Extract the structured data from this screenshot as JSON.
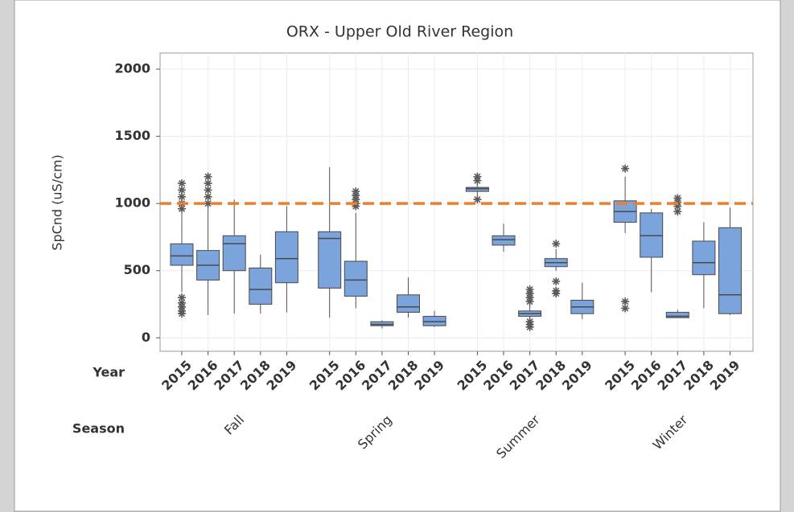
{
  "chart_data": {
    "type": "boxplot",
    "title": "ORX - Upper Old River Region",
    "ylabel": "SpCnd (uS/cm)",
    "row_labels": [
      "Year",
      "Season"
    ],
    "groups": [
      "Fall",
      "Spring",
      "Summer",
      "Winter"
    ],
    "categories": [
      "2015",
      "2016",
      "2017",
      "2018",
      "2019",
      "2015",
      "2016",
      "2017",
      "2018",
      "2019",
      "2015",
      "2016",
      "2017",
      "2018",
      "2019",
      "2015",
      "2016",
      "2017",
      "2018",
      "2019"
    ],
    "boxes": [
      {
        "min": 340,
        "q1": 540,
        "median": 610,
        "q3": 700,
        "max": 940,
        "outliers": [
          960,
          1000,
          1050,
          1100,
          1150,
          180,
          200,
          230,
          260,
          300
        ]
      },
      {
        "min": 170,
        "q1": 430,
        "median": 540,
        "q3": 650,
        "max": 980,
        "outliers": [
          1000,
          1050,
          1100,
          1150,
          1200
        ]
      },
      {
        "min": 180,
        "q1": 500,
        "median": 700,
        "q3": 760,
        "max": 1030,
        "outliers": []
      },
      {
        "min": 180,
        "q1": 250,
        "median": 360,
        "q3": 520,
        "max": 620,
        "outliers": []
      },
      {
        "min": 190,
        "q1": 410,
        "median": 590,
        "q3": 790,
        "max": 980,
        "outliers": []
      },
      {
        "min": 150,
        "q1": 370,
        "median": 740,
        "q3": 790,
        "max": 1270,
        "outliers": []
      },
      {
        "min": 220,
        "q1": 310,
        "median": 430,
        "q3": 570,
        "max": 930,
        "outliers": [
          980,
          1000,
          1030,
          1060,
          1090
        ]
      },
      {
        "min": 70,
        "q1": 90,
        "median": 100,
        "q3": 120,
        "max": 130,
        "outliers": []
      },
      {
        "min": 150,
        "q1": 190,
        "median": 230,
        "q3": 320,
        "max": 450,
        "outliers": []
      },
      {
        "min": 80,
        "q1": 90,
        "median": 120,
        "q3": 160,
        "max": 200,
        "outliers": []
      },
      {
        "min": 1060,
        "q1": 1090,
        "median": 1110,
        "q3": 1120,
        "max": 1150,
        "outliers": [
          1170,
          1200,
          1030
        ]
      },
      {
        "min": 640,
        "q1": 690,
        "median": 730,
        "q3": 760,
        "max": 850,
        "outliers": []
      },
      {
        "min": 140,
        "q1": 160,
        "median": 180,
        "q3": 200,
        "max": 250,
        "outliers": [
          270,
          300,
          330,
          360,
          80,
          100,
          120
        ]
      },
      {
        "min": 500,
        "q1": 530,
        "median": 560,
        "q3": 590,
        "max": 660,
        "outliers": [
          700,
          330,
          350,
          420
        ]
      },
      {
        "min": 140,
        "q1": 180,
        "median": 230,
        "q3": 280,
        "max": 410,
        "outliers": []
      },
      {
        "min": 780,
        "q1": 860,
        "median": 940,
        "q3": 1020,
        "max": 1200,
        "outliers": [
          1260,
          220,
          270
        ]
      },
      {
        "min": 340,
        "q1": 600,
        "median": 760,
        "q3": 930,
        "max": 960,
        "outliers": []
      },
      {
        "min": 150,
        "q1": 150,
        "median": 160,
        "q3": 190,
        "max": 210,
        "outliers": [
          940,
          980,
          1010,
          1040
        ]
      },
      {
        "min": 220,
        "q1": 470,
        "median": 560,
        "q3": 720,
        "max": 860,
        "outliers": []
      },
      {
        "min": 170,
        "q1": 180,
        "median": 320,
        "q3": 820,
        "max": 970,
        "outliers": []
      }
    ],
    "color": "#7ba3dc",
    "reference_line": 1000,
    "reference_color": "#f07d2a",
    "ylim": [
      -100,
      2120
    ],
    "yticks": [
      0,
      500,
      1000,
      1500,
      2000
    ],
    "grid": true
  }
}
